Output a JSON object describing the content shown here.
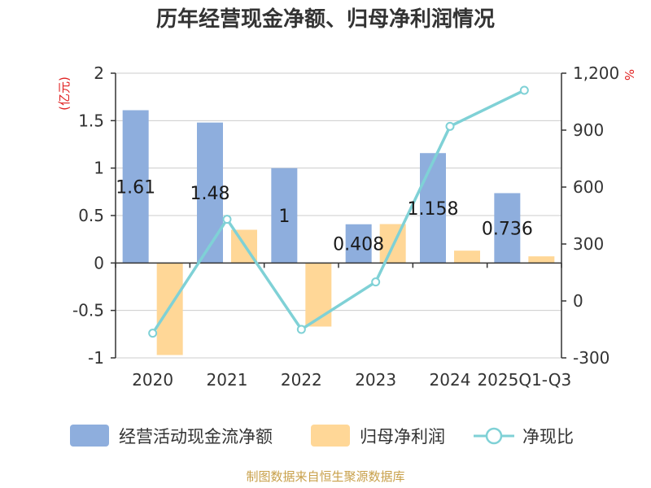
{
  "title": "历年经营现金净额、归母净利润情况",
  "footer": "制图数据来自恒生聚源数据库",
  "chart_data": {
    "type": "bar",
    "categories": [
      "2020",
      "2021",
      "2022",
      "2023",
      "2024",
      "2025Q1-Q3"
    ],
    "series": [
      {
        "name": "经营活动现金流净额",
        "kind": "bar",
        "axis": "left",
        "color": "#8eaedd",
        "values": [
          1.61,
          1.48,
          1.0,
          0.408,
          1.158,
          0.736
        ],
        "labels": [
          "1.61",
          "1.48",
          "1",
          "0.408",
          "1.158",
          "0.736"
        ]
      },
      {
        "name": "归母净利润",
        "kind": "bar",
        "axis": "left",
        "color": "#ffd797",
        "values": [
          -0.97,
          0.35,
          -0.67,
          0.41,
          0.13,
          0.07
        ]
      },
      {
        "name": "净现比",
        "kind": "line",
        "axis": "right",
        "color": "#7fd1d6",
        "values": [
          -170,
          430,
          -150,
          100,
          920,
          1110
        ]
      }
    ],
    "left_axis": {
      "unit": "(亿元)",
      "min": -1,
      "max": 2,
      "ticks": [
        2,
        1.5,
        1,
        0.5,
        0,
        -0.5,
        -1
      ],
      "tick_labels": [
        "2",
        "1.5",
        "1",
        "0.5",
        "0",
        "-0.5",
        "-1"
      ]
    },
    "right_axis": {
      "unit": "%",
      "min": -300,
      "max": 1200,
      "ticks": [
        1200,
        900,
        600,
        300,
        0,
        -300
      ],
      "tick_labels": [
        "1,200",
        "900",
        "600",
        "300",
        "0",
        "-300"
      ]
    },
    "grid": true,
    "legend_position": "bottom"
  }
}
